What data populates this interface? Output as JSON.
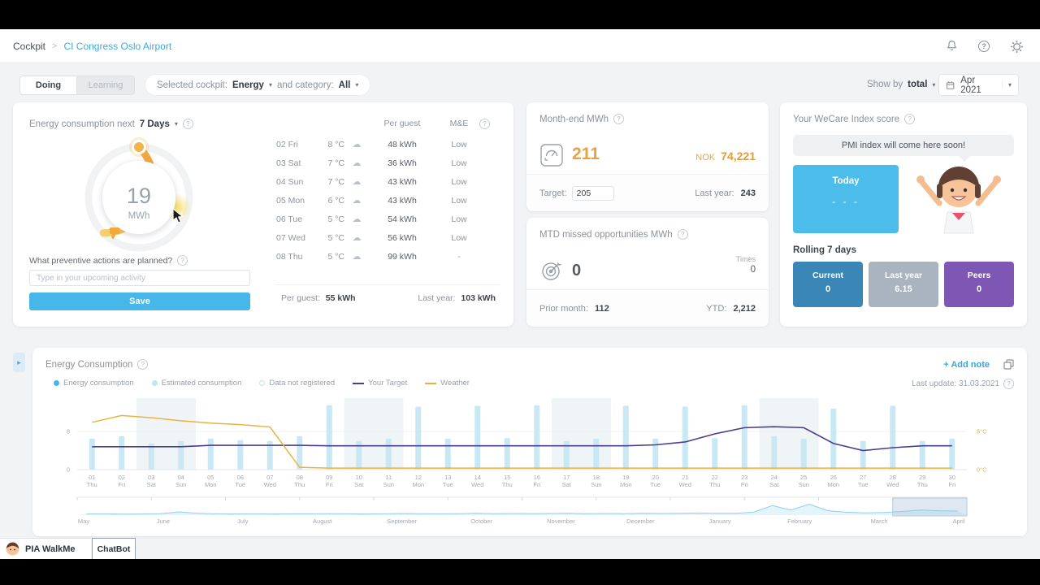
{
  "colors": {
    "accent_blue": "#47b7e9",
    "orange": "#e6a243",
    "target_purple": "#4a3d8f",
    "weather_yellow": "#e8b33c",
    "bar_blue": "#c9e8f4"
  },
  "header": {
    "breadcrumb_root": "Cockpit",
    "breadcrumb_sep": ">",
    "breadcrumb_current": "CI Congress Oslo Airport"
  },
  "toolbar": {
    "doing": "Doing",
    "learning": "Learning",
    "selected_cockpit_label": "Selected cockpit:",
    "cockpit_value": "Energy",
    "category_label": "and category:",
    "category_value": "All",
    "show_by_label": "Show by",
    "show_by_value": "total",
    "date_value": "Apr 2021"
  },
  "forecast_card": {
    "title": "Energy consumption next",
    "range": "7 Days",
    "gauge_value": "19",
    "gauge_unit": "MWh",
    "question": "What preventive actions are planned?",
    "input_placeholder": "Type in your upcoming activity",
    "save": "Save",
    "col_per_guest": "Per guest",
    "col_me": "M&E",
    "rows": [
      {
        "date": "02 Fri",
        "temp": "8 °C",
        "icon": "cloud",
        "per_guest": "48 kWh",
        "me": "Low"
      },
      {
        "date": "03 Sat",
        "temp": "7 °C",
        "icon": "cloud",
        "per_guest": "36 kWh",
        "me": "Low"
      },
      {
        "date": "04 Sun",
        "temp": "7 °C",
        "icon": "cloud",
        "per_guest": "43 kWh",
        "me": "Low"
      },
      {
        "date": "05 Mon",
        "temp": "6 °C",
        "icon": "cloud",
        "per_guest": "43 kWh",
        "me": "Low"
      },
      {
        "date": "06 Tue",
        "temp": "5 °C",
        "icon": "cloud",
        "per_guest": "54 kWh",
        "me": "Low"
      },
      {
        "date": "07 Wed",
        "temp": "5 °C",
        "icon": "cloud",
        "per_guest": "56 kWh",
        "me": "Low"
      },
      {
        "date": "08 Thu",
        "temp": "5 °C",
        "icon": "cloud",
        "per_guest": "99 kWh",
        "me": "-"
      }
    ],
    "footer_per_guest_label": "Per guest:",
    "footer_per_guest_value": "55 kWh",
    "footer_last_year_label": "Last year:",
    "footer_last_year_value": "103 kWh"
  },
  "month_end_card": {
    "title": "Month-end MWh",
    "value": "211",
    "currency": "NOK",
    "amount": "74,221",
    "target_label": "Target:",
    "target_value": "205",
    "last_year_label": "Last year:",
    "last_year_value": "243"
  },
  "mtd_card": {
    "title": "MTD missed opportunities MWh",
    "value": "0",
    "times_label": "Times",
    "times_value": "0",
    "prior_month_label": "Prior month:",
    "prior_month_value": "112",
    "ytd_label": "YTD:",
    "ytd_value": "2,212"
  },
  "wecare_card": {
    "title": "Your WeCare Index score",
    "bubble": "PMI index will come here soon!",
    "today_label": "Today",
    "today_value": "- - -",
    "rolling_label": "Rolling 7 days",
    "stats": [
      {
        "label": "Current",
        "value": "0",
        "color": "#3a87b7"
      },
      {
        "label": "Last year",
        "value": "6.15",
        "color": "#a9b4c0"
      },
      {
        "label": "Peers",
        "value": "0",
        "color": "#7e57b5"
      }
    ]
  },
  "chart_card": {
    "title": "Energy Consumption",
    "add_note": "+ Add note",
    "last_update": "Last update: 31.03.2021"
  },
  "chart_data": {
    "type": "bar",
    "title": "Energy Consumption",
    "legend": [
      {
        "label": "Energy consumption",
        "swatch": "dot",
        "color": "#49b5e7"
      },
      {
        "label": "Estimated consumption",
        "swatch": "dot",
        "color": "#bfe4f2"
      },
      {
        "label": "Data not registered",
        "swatch": "ring",
        "color": "#bfe4f2"
      },
      {
        "label": "Your Target",
        "swatch": "line",
        "color": "#4a3d8f"
      },
      {
        "label": "Weather",
        "swatch": "line",
        "color": "#e8b33c"
      }
    ],
    "categories": [
      "01 Thu",
      "02 Fri",
      "03 Sat",
      "04 Sun",
      "05 Mon",
      "06 Tue",
      "07 Wed",
      "08 Thu",
      "09 Fri",
      "10 Sat",
      "11 Sun",
      "12 Mon",
      "13 Tue",
      "14 Wed",
      "15 Thu",
      "16 Fri",
      "17 Sat",
      "18 Sun",
      "19 Mon",
      "20 Tue",
      "21 Wed",
      "22 Thu",
      "23 Fri",
      "24 Sat",
      "25 Sun",
      "26 Mon",
      "27 Tue",
      "28 Wed",
      "29 Thu",
      "30 Fri"
    ],
    "series": [
      {
        "name": "Estimated consumption",
        "kind": "bar",
        "color": "#c9e8f4",
        "values": [
          6.5,
          7,
          5.5,
          6,
          6.5,
          6.2,
          6,
          7,
          13.5,
          6,
          6.5,
          13.2,
          6.5,
          13.4,
          6.6,
          13.5,
          6,
          6.5,
          13.4,
          6.5,
          13.2,
          6.6,
          13.5,
          7,
          6.5,
          12.8,
          6,
          13.4,
          6,
          6.5
        ]
      },
      {
        "name": "Your Target",
        "kind": "line",
        "color": "#4a3d8f",
        "values": [
          4.8,
          4.8,
          4.8,
          4.8,
          5.1,
          5.1,
          5.1,
          5.1,
          5,
          5,
          5,
          5,
          5,
          5,
          5,
          5,
          5,
          5,
          5,
          5.2,
          5.8,
          7.5,
          8.8,
          9,
          8.8,
          5.5,
          4,
          4.6,
          5,
          5
        ]
      },
      {
        "name": "Weather",
        "kind": "line",
        "color": "#e8b33c",
        "values_celsius": [
          6.2,
          7.1,
          6.8,
          6.4,
          6.1,
          5.9,
          5.6,
          0.3,
          0.2,
          0.2,
          0.2,
          0.2,
          0.2,
          0.2,
          0.2,
          0.2,
          0.2,
          0.2,
          0.2,
          0.2,
          0.2,
          0.2,
          0.2,
          0.2,
          0.2,
          0.2,
          0.2,
          0.2,
          0.2,
          0.2
        ]
      }
    ],
    "ylim": [
      0,
      15
    ],
    "left_ticks": [
      {
        "value": 8,
        "label": "8"
      },
      {
        "value": 0,
        "label": "0"
      }
    ],
    "right_ticks": [
      {
        "celsius": 5,
        "label": "5°C"
      },
      {
        "celsius": 0,
        "label": "0°C"
      }
    ],
    "weekend_shading": true,
    "timeline": {
      "months": [
        "May",
        "June",
        "July",
        "August",
        "September",
        "October",
        "November",
        "December",
        "January",
        "February",
        "March",
        "April"
      ],
      "selected": "April",
      "activity": [
        0.8,
        0.9,
        0.7,
        0.8,
        1.0,
        2.2,
        1.2,
        0.9,
        0.8,
        0.9,
        0.8,
        0.9,
        0.9,
        1.0,
        0.9,
        0.8,
        0.9,
        1.1,
        1.0,
        0.9,
        1.0,
        1.2,
        1.0,
        1.1,
        1.0,
        1.1,
        1.2,
        1.0,
        1.1,
        1.0,
        1.2,
        1.1,
        1.2,
        1.4,
        1.3,
        1.2,
        2.0,
        6.5,
        3.5,
        7.5,
        3.0,
        2.0,
        1.5,
        1.8,
        2.5,
        3.5,
        3.0,
        2.8
      ]
    }
  },
  "footer": {
    "pia": "PIA WalkMe",
    "chatbot": "ChatBot"
  }
}
